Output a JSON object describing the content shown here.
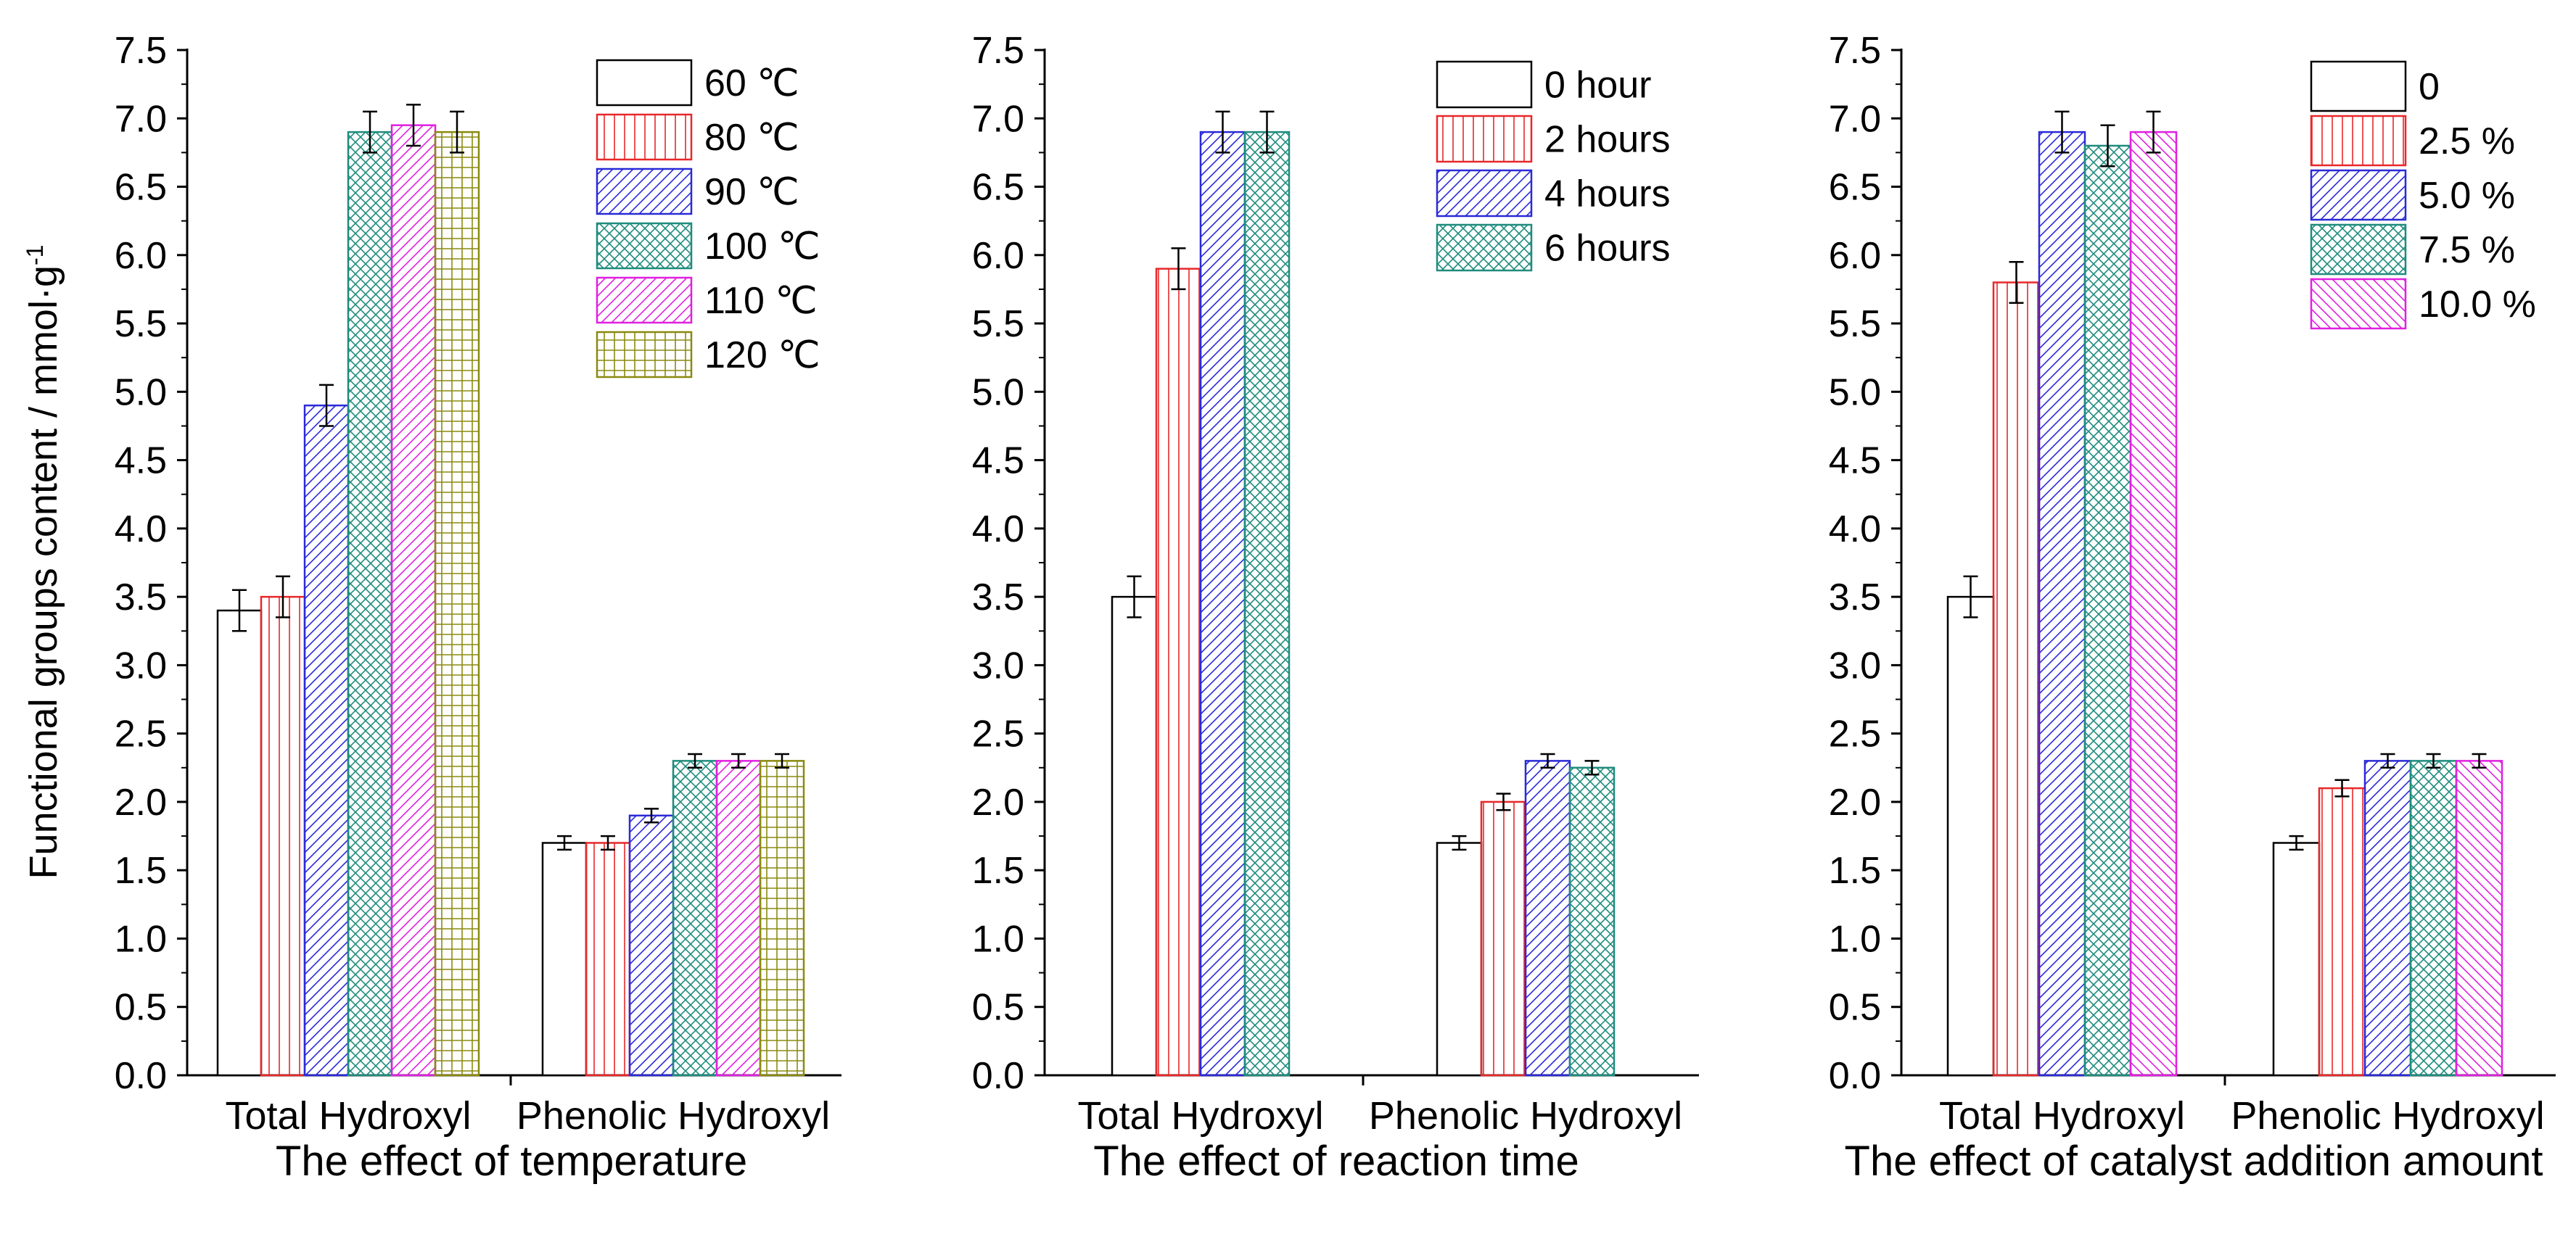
{
  "figure": {
    "ylabel": "Functional groups content / mmol·g",
    "ylabel_sup": "-1"
  },
  "chart_data": [
    {
      "type": "bar",
      "title": "The effect of temperature",
      "xlabel": "",
      "ylabel": "Functional groups content / mmol·g-1",
      "ylim": [
        0,
        7.5
      ],
      "yticks": [
        "0.0",
        "0.5",
        "1.0",
        "1.5",
        "2.0",
        "2.5",
        "3.0",
        "3.5",
        "4.0",
        "4.5",
        "5.0",
        "5.5",
        "6.0",
        "6.5",
        "7.0",
        "7.5"
      ],
      "categories": [
        "Total Hydroxyl",
        "Phenolic Hydroxyl"
      ],
      "legend_position": "top-right",
      "series": [
        {
          "name": "60 ℃",
          "values": [
            3.4,
            1.7
          ],
          "errors": [
            0.15,
            0.05
          ],
          "color": "#000000",
          "pattern": "none"
        },
        {
          "name": "80 ℃",
          "values": [
            3.5,
            1.7
          ],
          "errors": [
            0.15,
            0.05
          ],
          "color": "#e8282a",
          "pattern": "vertical"
        },
        {
          "name": "90 ℃",
          "values": [
            4.9,
            1.9
          ],
          "errors": [
            0.15,
            0.05
          ],
          "color": "#2a2ad8",
          "pattern": "diagonal"
        },
        {
          "name": "100 ℃",
          "values": [
            6.9,
            2.3
          ],
          "errors": [
            0.15,
            0.05
          ],
          "color": "#1f8c7d",
          "pattern": "crosshatch"
        },
        {
          "name": "110 ℃",
          "values": [
            6.95,
            2.3
          ],
          "errors": [
            0.15,
            0.05
          ],
          "color": "#e020e0",
          "pattern": "diagonal"
        },
        {
          "name": "120 ℃",
          "values": [
            6.9,
            2.3
          ],
          "errors": [
            0.15,
            0.05
          ],
          "color": "#8a8a10",
          "pattern": "grid"
        }
      ]
    },
    {
      "type": "bar",
      "title": "The effect of reaction time",
      "xlabel": "",
      "ylabel": "",
      "ylim": [
        0,
        7.5
      ],
      "yticks": [
        "0.0",
        "0.5",
        "1.0",
        "1.5",
        "2.0",
        "2.5",
        "3.0",
        "3.5",
        "4.0",
        "4.5",
        "5.0",
        "5.5",
        "6.0",
        "6.5",
        "7.0",
        "7.5"
      ],
      "categories": [
        "Total Hydroxyl",
        "Phenolic Hydroxyl"
      ],
      "legend_position": "top-right",
      "series": [
        {
          "name": "0 hour",
          "values": [
            3.5,
            1.7
          ],
          "errors": [
            0.15,
            0.05
          ],
          "color": "#000000",
          "pattern": "none"
        },
        {
          "name": "2 hours",
          "values": [
            5.9,
            2.0
          ],
          "errors": [
            0.15,
            0.06
          ],
          "color": "#e8282a",
          "pattern": "vertical"
        },
        {
          "name": "4 hours",
          "values": [
            6.9,
            2.3
          ],
          "errors": [
            0.15,
            0.05
          ],
          "color": "#2a2ad8",
          "pattern": "diagonal"
        },
        {
          "name": "6 hours",
          "values": [
            6.9,
            2.25
          ],
          "errors": [
            0.15,
            0.05
          ],
          "color": "#1f8c7d",
          "pattern": "crosshatch"
        }
      ]
    },
    {
      "type": "bar",
      "title": "The effect of catalyst addition amount",
      "xlabel": "",
      "ylabel": "",
      "ylim": [
        0,
        7.5
      ],
      "yticks": [
        "0.0",
        "0.5",
        "1.0",
        "1.5",
        "2.0",
        "2.5",
        "3.0",
        "3.5",
        "4.0",
        "4.5",
        "5.0",
        "5.5",
        "6.0",
        "6.5",
        "7.0",
        "7.5"
      ],
      "categories": [
        "Total Hydroxyl",
        "Phenolic Hydroxyl"
      ],
      "legend_position": "top-right",
      "series": [
        {
          "name": "0",
          "values": [
            3.5,
            1.7
          ],
          "errors": [
            0.15,
            0.05
          ],
          "color": "#000000",
          "pattern": "none"
        },
        {
          "name": "2.5 %",
          "values": [
            5.8,
            2.1
          ],
          "errors": [
            0.15,
            0.06
          ],
          "color": "#e8282a",
          "pattern": "vertical"
        },
        {
          "name": "5.0 %",
          "values": [
            6.9,
            2.3
          ],
          "errors": [
            0.15,
            0.05
          ],
          "color": "#2a2ad8",
          "pattern": "diagonal"
        },
        {
          "name": "7.5 %",
          "values": [
            6.8,
            2.3
          ],
          "errors": [
            0.15,
            0.05
          ],
          "color": "#1f8c7d",
          "pattern": "crosshatch"
        },
        {
          "name": "10.0 %",
          "values": [
            6.9,
            2.3
          ],
          "errors": [
            0.15,
            0.05
          ],
          "color": "#e020e0",
          "pattern": "diagonal-reverse"
        }
      ]
    }
  ]
}
